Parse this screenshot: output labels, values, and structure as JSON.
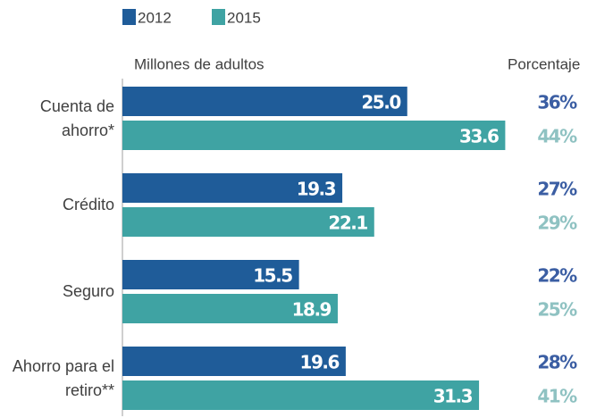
{
  "chart_data": {
    "type": "bar",
    "orientation": "horizontal",
    "axis_label": "Millones de adultos",
    "percent_header": "Porcentaje",
    "categories": [
      "Cuenta de ahorro*",
      "Crédito",
      "Seguro",
      "Ahorro para el retiro**"
    ],
    "series": [
      {
        "name": "2012",
        "color": "#1f5c99",
        "percent_color": "#3b5ea3",
        "values": [
          25.0,
          19.3,
          15.5,
          19.6
        ],
        "value_labels": [
          "25.0",
          "19.3",
          "15.5",
          "19.6"
        ],
        "percentages": [
          36,
          27,
          22,
          28
        ],
        "percentage_labels": [
          "36%",
          "27%",
          "22%",
          "28%"
        ]
      },
      {
        "name": "2015",
        "color": "#3fa3a3",
        "percent_color": "#8fc2c2",
        "values": [
          33.6,
          22.1,
          18.9,
          31.3
        ],
        "value_labels": [
          "33.6",
          "22.1",
          "18.9",
          "31.3"
        ],
        "percentages": [
          44,
          29,
          25,
          41
        ],
        "percentage_labels": [
          "44%",
          "29%",
          "25%",
          "41%"
        ]
      }
    ]
  }
}
